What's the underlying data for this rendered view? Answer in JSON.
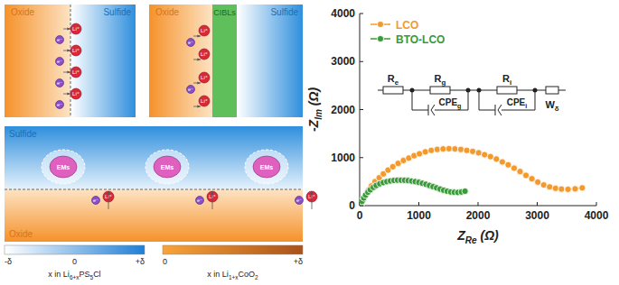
{
  "diagram": {
    "panels": [
      {
        "left": "Oxide",
        "right": "Sulfide"
      },
      {
        "left": "Oxide",
        "middle": "CIBLs",
        "right": "Sulfide"
      },
      {
        "top": "Sulfide",
        "bottom": "Oxide",
        "particle_label": "EMs"
      }
    ],
    "ion_label": "Li⁺",
    "electron_label": "e⁻",
    "colorbars": [
      {
        "ticks": [
          "-δ",
          "0",
          "+δ"
        ],
        "label": [
          {
            "t": "x in Li"
          },
          {
            "t": "6+x",
            "sub": true
          },
          {
            "t": "PS"
          },
          {
            "t": "5",
            "sub": true
          },
          {
            "t": "Cl"
          }
        ]
      },
      {
        "ticks": [
          "0",
          "+δ"
        ],
        "label": [
          {
            "t": "x in Li"
          },
          {
            "t": "1+x",
            "sub": true
          },
          {
            "t": "CoO"
          },
          {
            "t": "2",
            "sub": true
          }
        ]
      }
    ]
  },
  "chart_data": {
    "type": "scatter",
    "x_label": [
      {
        "t": "Z"
      },
      {
        "t": "Re",
        "sub": true
      }
    ],
    "y_label": [
      {
        "t": "-Z"
      },
      {
        "t": "Im",
        "sub": true
      },
      {
        "t": " (Ω)"
      }
    ],
    "x_unit": " (Ω)",
    "xlim": [
      0,
      4000
    ],
    "ylim": [
      0,
      4000
    ],
    "xticks": [
      0,
      1000,
      2000,
      3000,
      4000
    ],
    "yticks": [
      0,
      1000,
      2000,
      3000,
      4000
    ],
    "legend": "upper left",
    "series": [
      {
        "name": "LCO",
        "color": "#f39a2e",
        "marker": "circle",
        "line_style": "solid",
        "x": [
          30,
          60,
          100,
          150,
          200,
          260,
          330,
          400,
          480,
          560,
          650,
          740,
          830,
          920,
          1010,
          1110,
          1210,
          1310,
          1410,
          1510,
          1610,
          1710,
          1810,
          1910,
          2010,
          2110,
          2210,
          2310,
          2410,
          2510,
          2610,
          2710,
          2810,
          2910,
          3010,
          3110,
          3210,
          3310,
          3410,
          3520,
          3640,
          3760
        ],
        "values": [
          20,
          120,
          220,
          320,
          410,
          500,
          580,
          660,
          740,
          810,
          880,
          940,
          990,
          1040,
          1080,
          1120,
          1150,
          1170,
          1180,
          1185,
          1180,
          1170,
          1150,
          1130,
          1100,
          1060,
          1020,
          970,
          910,
          850,
          780,
          710,
          630,
          560,
          490,
          430,
          390,
          360,
          345,
          340,
          350,
          370
        ]
      },
      {
        "name": "BTO-LCO",
        "color": "#3a9a3a",
        "marker": "circle",
        "line_style": "solid",
        "x": [
          20,
          40,
          70,
          100,
          140,
          180,
          230,
          280,
          340,
          400,
          460,
          520,
          580,
          640,
          700,
          760,
          820,
          880,
          940,
          1000,
          1060,
          1120,
          1180,
          1240,
          1300,
          1360,
          1420,
          1480,
          1540,
          1600,
          1660,
          1720,
          1780
        ],
        "values": [
          20,
          90,
          160,
          220,
          280,
          330,
          380,
          420,
          455,
          480,
          500,
          515,
          525,
          530,
          530,
          528,
          522,
          512,
          500,
          485,
          465,
          445,
          420,
          395,
          370,
          345,
          320,
          300,
          285,
          278,
          275,
          285,
          300
        ]
      }
    ],
    "circuit": [
      {
        "kind": "resistor",
        "label": [
          {
            "t": "R"
          },
          {
            "t": "e",
            "sub": true
          }
        ]
      },
      {
        "kind": "parallel",
        "top": [
          {
            "t": "R"
          },
          {
            "t": "g",
            "sub": true
          }
        ],
        "bottom": [
          {
            "t": "CPE"
          },
          {
            "t": "g",
            "sub": true
          }
        ]
      },
      {
        "kind": "parallel",
        "top": [
          {
            "t": "R"
          },
          {
            "t": "i",
            "sub": true
          }
        ],
        "bottom": [
          {
            "t": "CPE"
          },
          {
            "t": "i",
            "sub": true
          }
        ]
      },
      {
        "kind": "warburg",
        "label": [
          {
            "t": "W"
          },
          {
            "t": "δ",
            "sub": true
          }
        ]
      }
    ]
  }
}
